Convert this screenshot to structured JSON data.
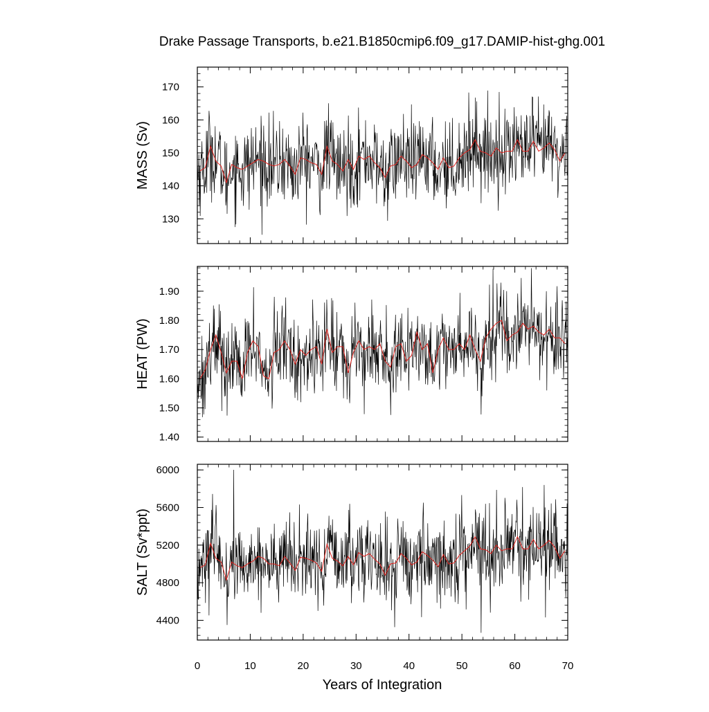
{
  "figure": {
    "title": "Drake Passage Transports, b.e21.B1850cmip6.f09_g17.DAMIP-hist-ghg.001",
    "xlabel": "Years of Integration"
  },
  "chart_data": {
    "type": "line",
    "title": "Drake Passage Transports, b.e21.B1850cmip6.f09_g17.DAMIP-hist-ghg.001",
    "xlabel": "Years of Integration",
    "xlim": [
      0,
      70
    ],
    "x_ticks": [
      0,
      10,
      20,
      30,
      40,
      50,
      60,
      70
    ],
    "x_tick_labels": [
      "0",
      "10",
      "20",
      "30",
      "40",
      "50",
      "60",
      "70"
    ],
    "series_colors": {
      "monthly": "#000000",
      "annual": "#e0201b"
    },
    "panels": [
      {
        "id": "mass",
        "ylabel": "MASS (Sv)",
        "ylim": [
          122.5,
          176
        ],
        "y_ticks": [
          130,
          140,
          150,
          160,
          170
        ],
        "y_tick_labels": [
          "130",
          "140",
          "150",
          "160",
          "170"
        ],
        "monthly_summary": {
          "min": 122.5,
          "max": 176,
          "mean": 147
        },
        "annual_years": [
          0.5,
          1.5,
          2.5,
          3.5,
          4.5,
          5.5,
          6.5,
          7.5,
          8.5,
          9.5,
          10.5,
          11.5,
          12.5,
          13.5,
          14.5,
          15.5,
          16.5,
          17.5,
          18.5,
          19.5,
          20.5,
          21.5,
          22.5,
          23.5,
          24.5,
          25.5,
          26.5,
          27.5,
          28.5,
          29.5,
          30.5,
          31.5,
          32.5,
          33.5,
          34.5,
          35.5,
          36.5,
          37.5,
          38.5,
          39.5,
          40.5,
          41.5,
          42.5,
          43.5,
          44.5,
          45.5,
          46.5,
          47.5,
          48.5,
          49.5,
          50.5,
          51.5,
          52.5,
          53.5,
          54.5,
          55.5,
          56.5,
          57.5,
          58.5,
          59.5,
          60.5,
          61.5,
          62.5,
          63.5,
          64.5,
          65.5,
          66.5,
          67.5,
          68.5,
          69.5
        ],
        "annual_values": [
          144.5,
          145.5,
          152,
          147.5,
          146,
          141,
          146.5,
          145.5,
          145,
          146,
          147,
          148,
          147.5,
          146.5,
          146,
          146.5,
          148,
          146,
          143.5,
          148.5,
          148,
          147,
          146.5,
          143.5,
          152,
          147.5,
          146.5,
          144.5,
          148,
          145,
          149,
          148,
          149,
          147,
          145.5,
          142.5,
          146,
          146.5,
          149,
          147.5,
          145.5,
          146.5,
          149.5,
          148.5,
          147,
          145,
          148.5,
          145.5,
          146,
          148.5,
          150,
          151,
          154,
          150.5,
          150,
          149,
          151.5,
          150,
          150.5,
          150.5,
          154,
          150.5,
          150.5,
          153.5,
          150.5,
          151.5,
          153,
          151,
          147.5,
          150
        ]
      },
      {
        "id": "heat",
        "ylabel": "HEAT (PW)",
        "ylim": [
          1.385,
          1.985
        ],
        "y_ticks": [
          1.4,
          1.5,
          1.6,
          1.7,
          1.8,
          1.9
        ],
        "y_tick_labels": [
          "1.40",
          "1.50",
          "1.60",
          "1.70",
          "1.80",
          "1.90"
        ],
        "monthly_summary": {
          "min": 1.385,
          "max": 1.985,
          "mean": 1.69
        },
        "annual_years": [
          0.5,
          1.5,
          2.5,
          3.5,
          4.5,
          5.5,
          6.5,
          7.5,
          8.5,
          9.5,
          10.5,
          11.5,
          12.5,
          13.5,
          14.5,
          15.5,
          16.5,
          17.5,
          18.5,
          19.5,
          20.5,
          21.5,
          22.5,
          23.5,
          24.5,
          25.5,
          26.5,
          27.5,
          28.5,
          29.5,
          30.5,
          31.5,
          32.5,
          33.5,
          34.5,
          35.5,
          36.5,
          37.5,
          38.5,
          39.5,
          40.5,
          41.5,
          42.5,
          43.5,
          44.5,
          45.5,
          46.5,
          47.5,
          48.5,
          49.5,
          50.5,
          51.5,
          52.5,
          53.5,
          54.5,
          55.5,
          56.5,
          57.5,
          58.5,
          59.5,
          60.5,
          61.5,
          62.5,
          63.5,
          64.5,
          65.5,
          66.5,
          67.5,
          68.5,
          69.5
        ],
        "annual_values": [
          1.6,
          1.63,
          1.7,
          1.75,
          1.69,
          1.62,
          1.66,
          1.66,
          1.6,
          1.69,
          1.73,
          1.71,
          1.61,
          1.6,
          1.69,
          1.7,
          1.73,
          1.7,
          1.65,
          1.7,
          1.68,
          1.7,
          1.71,
          1.65,
          1.77,
          1.69,
          1.71,
          1.71,
          1.62,
          1.69,
          1.73,
          1.7,
          1.71,
          1.7,
          1.72,
          1.66,
          1.64,
          1.71,
          1.72,
          1.66,
          1.68,
          1.76,
          1.7,
          1.72,
          1.62,
          1.7,
          1.74,
          1.7,
          1.7,
          1.72,
          1.7,
          1.75,
          1.7,
          1.66,
          1.74,
          1.77,
          1.79,
          1.8,
          1.73,
          1.75,
          1.76,
          1.79,
          1.77,
          1.78,
          1.76,
          1.75,
          1.77,
          1.74,
          1.74,
          1.72
        ]
      },
      {
        "id": "salt",
        "ylabel": "SALT (Sv*ppt)",
        "ylim": [
          4190,
          6060
        ],
        "y_ticks": [
          4400,
          4800,
          5200,
          5600,
          6000
        ],
        "y_tick_labels": [
          "4400",
          "4800",
          "5200",
          "5600",
          "6000"
        ],
        "monthly_summary": {
          "min": 4190,
          "max": 6060,
          "mean": 5080
        },
        "annual_years": [
          0.5,
          1.5,
          2.5,
          3.5,
          4.5,
          5.5,
          6.5,
          7.5,
          8.5,
          9.5,
          10.5,
          11.5,
          12.5,
          13.5,
          14.5,
          15.5,
          16.5,
          17.5,
          18.5,
          19.5,
          20.5,
          21.5,
          22.5,
          23.5,
          24.5,
          25.5,
          26.5,
          27.5,
          28.5,
          29.5,
          30.5,
          31.5,
          32.5,
          33.5,
          34.5,
          35.5,
          36.5,
          37.5,
          38.5,
          39.5,
          40.5,
          41.5,
          42.5,
          43.5,
          44.5,
          45.5,
          46.5,
          47.5,
          48.5,
          49.5,
          50.5,
          51.5,
          52.5,
          53.5,
          54.5,
          55.5,
          56.5,
          57.5,
          58.5,
          59.5,
          60.5,
          61.5,
          62.5,
          63.5,
          64.5,
          65.5,
          66.5,
          67.5,
          68.5,
          69.5
        ],
        "annual_values": [
          4960,
          4990,
          5220,
          5060,
          5020,
          4830,
          5020,
          4980,
          4960,
          5000,
          5030,
          5080,
          5060,
          5000,
          5000,
          4980,
          5080,
          5010,
          4930,
          5070,
          5060,
          5040,
          5010,
          4920,
          5210,
          5060,
          5030,
          4980,
          5080,
          4990,
          5120,
          5080,
          5110,
          5050,
          5000,
          4880,
          5000,
          5010,
          5110,
          5060,
          4990,
          5020,
          5130,
          5090,
          5040,
          4970,
          5100,
          5000,
          5010,
          5090,
          5140,
          5190,
          5290,
          5160,
          5150,
          5110,
          5200,
          5140,
          5160,
          5160,
          5290,
          5160,
          5160,
          5260,
          5160,
          5200,
          5250,
          5180,
          5060,
          5140
        ]
      }
    ]
  }
}
